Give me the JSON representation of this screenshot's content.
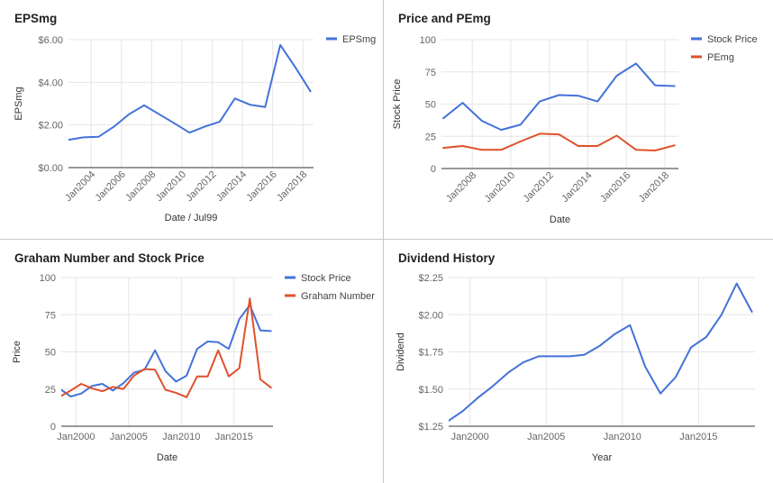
{
  "colors": {
    "blue": "#4472D9",
    "red": "#E0512B",
    "grid": "#e6e6e6",
    "axis": "#333333",
    "text": "#666666",
    "title": "#222222"
  },
  "chart_data": [
    {
      "id": "eps",
      "type": "line",
      "title": "EPSmg",
      "xlabel": "Date / Jul99",
      "ylabel": "EPSmg",
      "grid": true,
      "legend": "top-right",
      "xlim": [
        2002.5,
        2018.7
      ],
      "ylim": [
        0,
        6
      ],
      "x_ticks": [
        2004,
        2006,
        2008,
        2010,
        2012,
        2014,
        2016,
        2018
      ],
      "x_tick_labels": [
        "Jan2004",
        "Jan2006",
        "Jan2008",
        "Jan2010",
        "Jan2012",
        "Jan2014",
        "Jan2016",
        "Jan2018"
      ],
      "x_tick_rotate": true,
      "y_ticks": [
        0,
        2,
        4,
        6
      ],
      "y_tick_labels": [
        "$0.00",
        "$2.00",
        "$4.00",
        "$6.00"
      ],
      "series": [
        {
          "name": "EPSmg",
          "color": "#4472D9",
          "x": [
            2002.5,
            2003.5,
            2004.5,
            2005.5,
            2006.5,
            2007.5,
            2008.5,
            2009.5,
            2010.5,
            2011.5,
            2012.5,
            2013.5,
            2014.5,
            2015.5,
            2016.5,
            2017.5,
            2018.5
          ],
          "y": [
            1.3,
            1.42,
            1.45,
            1.92,
            2.5,
            2.92,
            2.5,
            2.08,
            1.64,
            1.92,
            2.15,
            3.24,
            2.95,
            2.84,
            5.75,
            4.7,
            3.58
          ]
        }
      ]
    },
    {
      "id": "pe",
      "type": "line",
      "title": "Price and PEmg",
      "xlabel": "Date",
      "ylabel": "Stock Price",
      "grid": true,
      "legend": "top-right",
      "xlim": [
        2006.4,
        2018.7
      ],
      "ylim": [
        0,
        100
      ],
      "x_ticks": [
        2008,
        2010,
        2012,
        2014,
        2016,
        2018
      ],
      "x_tick_labels": [
        "Jan2008",
        "Jan2010",
        "Jan2012",
        "Jan2014",
        "Jan2016",
        "Jan2018"
      ],
      "x_tick_rotate": true,
      "y_ticks": [
        0,
        25,
        50,
        75,
        100
      ],
      "y_tick_labels": [
        "0",
        "25",
        "50",
        "75",
        "100"
      ],
      "series": [
        {
          "name": "Stock Price",
          "color": "#4472D9",
          "x": [
            2006.5,
            2007.5,
            2008.5,
            2009.5,
            2010.5,
            2011.5,
            2012.5,
            2013.5,
            2014.5,
            2015.5,
            2016.5,
            2017.5,
            2018.5
          ],
          "y": [
            39,
            51,
            37,
            30,
            34,
            52,
            57,
            56.5,
            52,
            72,
            81.5,
            64.5,
            64
          ]
        },
        {
          "name": "PEmg",
          "color": "#E0512B",
          "x": [
            2006.5,
            2007.5,
            2008.5,
            2009.5,
            2010.5,
            2011.5,
            2012.5,
            2013.5,
            2014.5,
            2015.5,
            2016.5,
            2017.5,
            2018.5
          ],
          "y": [
            16,
            17.5,
            14.5,
            14.5,
            21,
            27,
            26.5,
            17.5,
            17.5,
            25.5,
            14.5,
            14,
            18
          ]
        }
      ]
    },
    {
      "id": "graham",
      "type": "line",
      "title": "Graham Number and Stock Price",
      "xlabel": "Date",
      "ylabel": "Price",
      "grid": true,
      "legend": "top-right",
      "xlim": [
        1998.6,
        2018.7
      ],
      "ylim": [
        0,
        100
      ],
      "x_ticks": [
        2000,
        2005,
        2010,
        2015
      ],
      "x_tick_labels": [
        "Jan2000",
        "Jan2005",
        "Jan2010",
        "Jan2015"
      ],
      "x_tick_rotate": false,
      "y_ticks": [
        0,
        25,
        50,
        75,
        100
      ],
      "y_tick_labels": [
        "0",
        "25",
        "50",
        "75",
        "100"
      ],
      "series": [
        {
          "name": "Stock Price",
          "color": "#4472D9",
          "x": [
            1998.5,
            1999.5,
            2000.5,
            2001.5,
            2002.5,
            2003.5,
            2004.5,
            2005.5,
            2006.5,
            2007.5,
            2008.5,
            2009.5,
            2010.5,
            2011.5,
            2012.5,
            2013.5,
            2014.5,
            2015.5,
            2016.5,
            2017.5,
            2018.5
          ],
          "y": [
            25,
            20,
            22,
            27,
            28.5,
            24,
            29,
            36,
            38,
            51,
            37,
            30,
            34,
            52,
            57,
            56.5,
            52,
            72,
            81.5,
            64.5,
            64
          ]
        },
        {
          "name": "Graham Number",
          "color": "#E0512B",
          "x": [
            1998.5,
            1999.5,
            2000.5,
            2001.5,
            2002.5,
            2003.5,
            2004.5,
            2005.5,
            2006.5,
            2007.5,
            2008.5,
            2009.5,
            2010.5,
            2011.5,
            2012.5,
            2013.5,
            2014.5,
            2015.5,
            2016.5,
            2017.5,
            2018.5
          ],
          "y": [
            20,
            24,
            28.5,
            25.5,
            23.5,
            26.5,
            25,
            34,
            38.5,
            38,
            24.5,
            22.5,
            19.5,
            33.5,
            33.5,
            51,
            33.5,
            39,
            86,
            31.5,
            26
          ]
        }
      ]
    },
    {
      "id": "dividend",
      "type": "line",
      "title": "Dividend History",
      "xlabel": "Year",
      "ylabel": "Dividend",
      "grid": true,
      "legend": "none",
      "xlim": [
        1998.6,
        2018.7
      ],
      "ylim": [
        1.25,
        2.25
      ],
      "x_ticks": [
        2000,
        2005,
        2010,
        2015
      ],
      "x_tick_labels": [
        "Jan2000",
        "Jan2005",
        "Jan2010",
        "Jan2015"
      ],
      "x_tick_rotate": false,
      "y_ticks": [
        1.25,
        1.5,
        1.75,
        2.0,
        2.25
      ],
      "y_tick_labels": [
        "$1.25",
        "$1.50",
        "$1.75",
        "$2.00",
        "$2.25"
      ],
      "series": [
        {
          "name": "",
          "color": "#4472D9",
          "x": [
            1998.5,
            1999.5,
            2000.5,
            2001.5,
            2002.5,
            2003.5,
            2004.5,
            2005.5,
            2006.5,
            2007.5,
            2008.5,
            2009.5,
            2010.5,
            2011.5,
            2012.5,
            2013.5,
            2014.5,
            2015.5,
            2016.5,
            2017.5,
            2018.5
          ],
          "y": [
            1.28,
            1.35,
            1.44,
            1.52,
            1.61,
            1.68,
            1.72,
            1.72,
            1.72,
            1.73,
            1.79,
            1.87,
            1.93,
            1.65,
            1.47,
            1.58,
            1.78,
            1.85,
            2.0,
            2.21,
            2.02
          ]
        }
      ]
    }
  ]
}
